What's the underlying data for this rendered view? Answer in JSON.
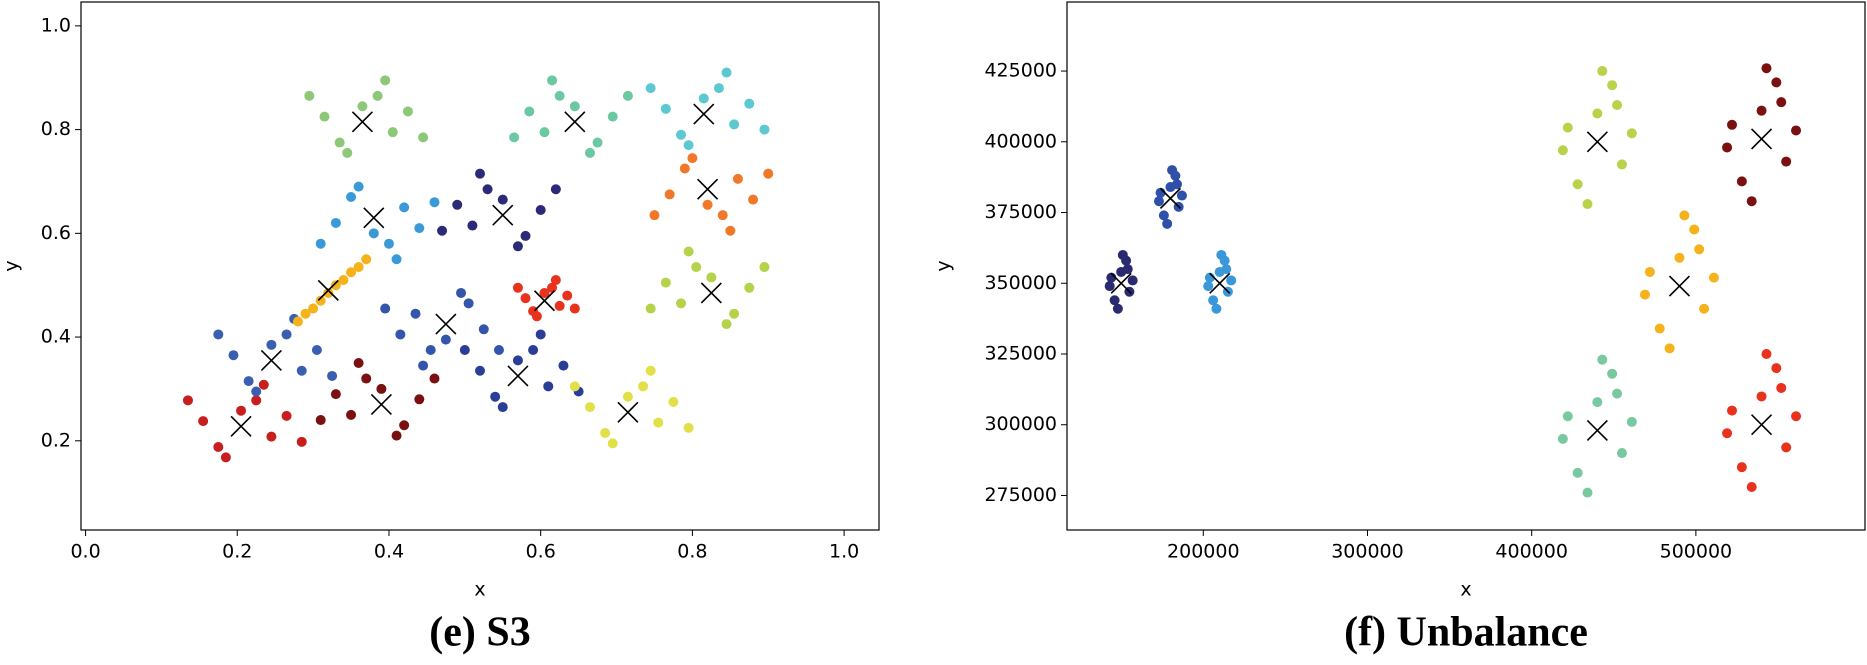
{
  "chart_data": [
    {
      "type": "scatter",
      "title": "(e) S3",
      "x_label": "x",
      "y_label": "y",
      "xlim": [
        -0.006,
        1.046
      ],
      "ylim": [
        0.028,
        1.046
      ],
      "xticks": [
        {
          "value": 0,
          "label": "0.0"
        },
        0.2,
        0.4,
        0.6,
        0.8,
        {
          "value": 1,
          "label": "1.0"
        }
      ],
      "yticks": [
        0.2,
        0.4,
        0.6,
        0.8,
        {
          "value": 1,
          "label": "1.0"
        }
      ],
      "series": [
        {
          "color": "#c81e1e",
          "x": [
            0.205,
            0.245,
            0.155,
            0.225,
            0.175,
            0.265,
            0.185,
            0.285,
            0.135,
            0.235
          ],
          "y": [
            0.258,
            0.208,
            0.238,
            0.278,
            0.188,
            0.248,
            0.168,
            0.198,
            0.278,
            0.308
          ]
        },
        {
          "color": "#7a1010",
          "x": [
            0.39,
            0.35,
            0.44,
            0.37,
            0.42,
            0.33,
            0.41,
            0.31,
            0.46,
            0.36
          ],
          "y": [
            0.3,
            0.25,
            0.28,
            0.32,
            0.23,
            0.29,
            0.21,
            0.24,
            0.32,
            0.35
          ]
        },
        {
          "color": "#3a5fb0",
          "x": [
            0.245,
            0.285,
            0.195,
            0.265,
            0.215,
            0.305,
            0.225,
            0.325,
            0.175,
            0.275
          ],
          "y": [
            0.385,
            0.335,
            0.365,
            0.405,
            0.315,
            0.375,
            0.295,
            0.325,
            0.405,
            0.435
          ]
        },
        {
          "color": "#f5b21a",
          "x": [
            0.28,
            0.29,
            0.3,
            0.31,
            0.32,
            0.33,
            0.34,
            0.35,
            0.36,
            0.37
          ],
          "y": [
            0.43,
            0.445,
            0.455,
            0.47,
            0.485,
            0.5,
            0.51,
            0.525,
            0.535,
            0.55
          ]
        },
        {
          "color": "#3a9ad8",
          "x": [
            0.38,
            0.42,
            0.33,
            0.4,
            0.35,
            0.44,
            0.36,
            0.46,
            0.31,
            0.41
          ],
          "y": [
            0.6,
            0.65,
            0.62,
            0.58,
            0.67,
            0.61,
            0.69,
            0.66,
            0.58,
            0.55
          ]
        },
        {
          "color": "#8cc878",
          "x": [
            0.365,
            0.405,
            0.315,
            0.385,
            0.335,
            0.425,
            0.345,
            0.445,
            0.295,
            0.395
          ],
          "y": [
            0.845,
            0.795,
            0.825,
            0.865,
            0.775,
            0.835,
            0.755,
            0.785,
            0.865,
            0.895
          ]
        },
        {
          "color": "#2a2a78",
          "x": [
            0.55,
            0.51,
            0.6,
            0.53,
            0.58,
            0.49,
            0.57,
            0.47,
            0.62,
            0.52
          ],
          "y": [
            0.665,
            0.615,
            0.645,
            0.685,
            0.595,
            0.655,
            0.575,
            0.605,
            0.685,
            0.715
          ]
        },
        {
          "color": "#3355aa",
          "x": [
            0.475,
            0.435,
            0.525,
            0.455,
            0.505,
            0.415,
            0.495,
            0.395,
            0.545,
            0.445
          ],
          "y": [
            0.395,
            0.445,
            0.415,
            0.375,
            0.465,
            0.405,
            0.485,
            0.455,
            0.375,
            0.345
          ]
        },
        {
          "color": "#2a3e98",
          "x": [
            0.57,
            0.61,
            0.52,
            0.59,
            0.54,
            0.63,
            0.55,
            0.65,
            0.5,
            0.6
          ],
          "y": [
            0.355,
            0.305,
            0.335,
            0.375,
            0.285,
            0.345,
            0.265,
            0.295,
            0.375,
            0.405
          ]
        },
        {
          "color": "#e8321e",
          "x": [
            0.605,
            0.625,
            0.58,
            0.615,
            0.59,
            0.635,
            0.595,
            0.645,
            0.57,
            0.62
          ],
          "y": [
            0.485,
            0.46,
            0.475,
            0.495,
            0.45,
            0.48,
            0.44,
            0.455,
            0.495,
            0.51
          ]
        },
        {
          "color": "#6cc8a0",
          "x": [
            0.645,
            0.605,
            0.695,
            0.625,
            0.675,
            0.585,
            0.665,
            0.565,
            0.715,
            0.615
          ],
          "y": [
            0.845,
            0.795,
            0.825,
            0.865,
            0.775,
            0.835,
            0.755,
            0.785,
            0.865,
            0.895
          ]
        },
        {
          "color": "#5cc8d0",
          "x": [
            0.815,
            0.855,
            0.765,
            0.835,
            0.785,
            0.875,
            0.795,
            0.895,
            0.745,
            0.845
          ],
          "y": [
            0.86,
            0.81,
            0.84,
            0.88,
            0.79,
            0.85,
            0.77,
            0.8,
            0.88,
            0.91
          ]
        },
        {
          "color": "#f07828",
          "x": [
            0.82,
            0.86,
            0.77,
            0.84,
            0.79,
            0.88,
            0.8,
            0.9,
            0.75,
            0.85
          ],
          "y": [
            0.655,
            0.705,
            0.675,
            0.635,
            0.725,
            0.665,
            0.745,
            0.715,
            0.635,
            0.605
          ]
        },
        {
          "color": "#b4d24a",
          "x": [
            0.825,
            0.785,
            0.875,
            0.805,
            0.855,
            0.765,
            0.845,
            0.745,
            0.895,
            0.795
          ],
          "y": [
            0.515,
            0.465,
            0.495,
            0.535,
            0.445,
            0.505,
            0.425,
            0.455,
            0.535,
            0.565
          ]
        },
        {
          "color": "#e2e048",
          "x": [
            0.715,
            0.755,
            0.665,
            0.735,
            0.685,
            0.775,
            0.695,
            0.795,
            0.645,
            0.745
          ],
          "y": [
            0.285,
            0.235,
            0.265,
            0.305,
            0.215,
            0.275,
            0.195,
            0.225,
            0.305,
            0.335
          ]
        },
        {
          "color": "#000000",
          "marker": "x",
          "x": [
            0.205,
            0.39,
            0.245,
            0.32,
            0.38,
            0.365,
            0.55,
            0.475,
            0.57,
            0.605,
            0.645,
            0.815,
            0.82,
            0.825,
            0.715
          ],
          "y": [
            0.228,
            0.27,
            0.355,
            0.49,
            0.63,
            0.815,
            0.635,
            0.425,
            0.325,
            0.47,
            0.815,
            0.83,
            0.685,
            0.485,
            0.255
          ]
        }
      ]
    },
    {
      "type": "scatter",
      "title": "(f) Unbalance",
      "x_label": "x",
      "y_label": "y",
      "xlim": [
        117000,
        603000
      ],
      "ylim": [
        262800,
        449400
      ],
      "xticks": [
        200000,
        300000,
        400000,
        500000
      ],
      "yticks": [
        275000,
        300000,
        325000,
        350000,
        375000,
        400000,
        425000
      ],
      "series": [
        {
          "color": "#2a2a70",
          "x": [
            150000,
            155000,
            144000,
            153000,
            146000,
            157000,
            148000,
            154000,
            143000,
            151000
          ],
          "y": [
            354000,
            347000,
            352000,
            358000,
            344000,
            351000,
            341000,
            355000,
            349000,
            360000
          ]
        },
        {
          "color": "#2e50a8",
          "x": [
            180000,
            185000,
            174000,
            183000,
            176000,
            187000,
            178000,
            184000,
            173000,
            181000
          ],
          "y": [
            384000,
            377000,
            382000,
            388000,
            374000,
            381000,
            371000,
            385000,
            379000,
            390000
          ]
        },
        {
          "color": "#3a98d8",
          "x": [
            210000,
            215000,
            204000,
            213000,
            206000,
            217000,
            208000,
            214000,
            203000,
            211000
          ],
          "y": [
            354000,
            347000,
            352000,
            358000,
            344000,
            351000,
            341000,
            355000,
            349000,
            360000
          ]
        },
        {
          "color": "#b8d24a",
          "x": [
            440000,
            455000,
            422000,
            449000,
            428000,
            461000,
            434000,
            452000,
            419000,
            443000
          ],
          "y": [
            410000,
            392000,
            405000,
            420000,
            385000,
            403000,
            378000,
            413000,
            397000,
            425000
          ]
        },
        {
          "color": "#78c8a0",
          "x": [
            440000,
            455000,
            422000,
            449000,
            428000,
            461000,
            434000,
            452000,
            419000,
            443000
          ],
          "y": [
            308000,
            290000,
            303000,
            318000,
            283000,
            301000,
            276000,
            311000,
            295000,
            323000
          ]
        },
        {
          "color": "#f5b21a",
          "x": [
            490000,
            505000,
            472000,
            499000,
            478000,
            511000,
            484000,
            502000,
            469000,
            493000
          ],
          "y": [
            359000,
            341000,
            354000,
            369000,
            334000,
            352000,
            327000,
            362000,
            346000,
            374000
          ]
        },
        {
          "color": "#7a1010",
          "x": [
            540000,
            555000,
            522000,
            549000,
            528000,
            561000,
            534000,
            552000,
            519000,
            543000
          ],
          "y": [
            411000,
            393000,
            406000,
            421000,
            386000,
            404000,
            379000,
            414000,
            398000,
            426000
          ]
        },
        {
          "color": "#e8321e",
          "x": [
            540000,
            555000,
            522000,
            549000,
            528000,
            561000,
            534000,
            552000,
            519000,
            543000
          ],
          "y": [
            310000,
            292000,
            305000,
            320000,
            285000,
            303000,
            278000,
            313000,
            297000,
            325000
          ]
        },
        {
          "color": "#000000",
          "marker": "x",
          "x": [
            150000,
            180000,
            210000,
            440000,
            440000,
            490000,
            540000,
            540000
          ],
          "y": [
            350000,
            380000,
            350000,
            400000,
            298000,
            349000,
            401000,
            300000
          ]
        }
      ]
    }
  ]
}
